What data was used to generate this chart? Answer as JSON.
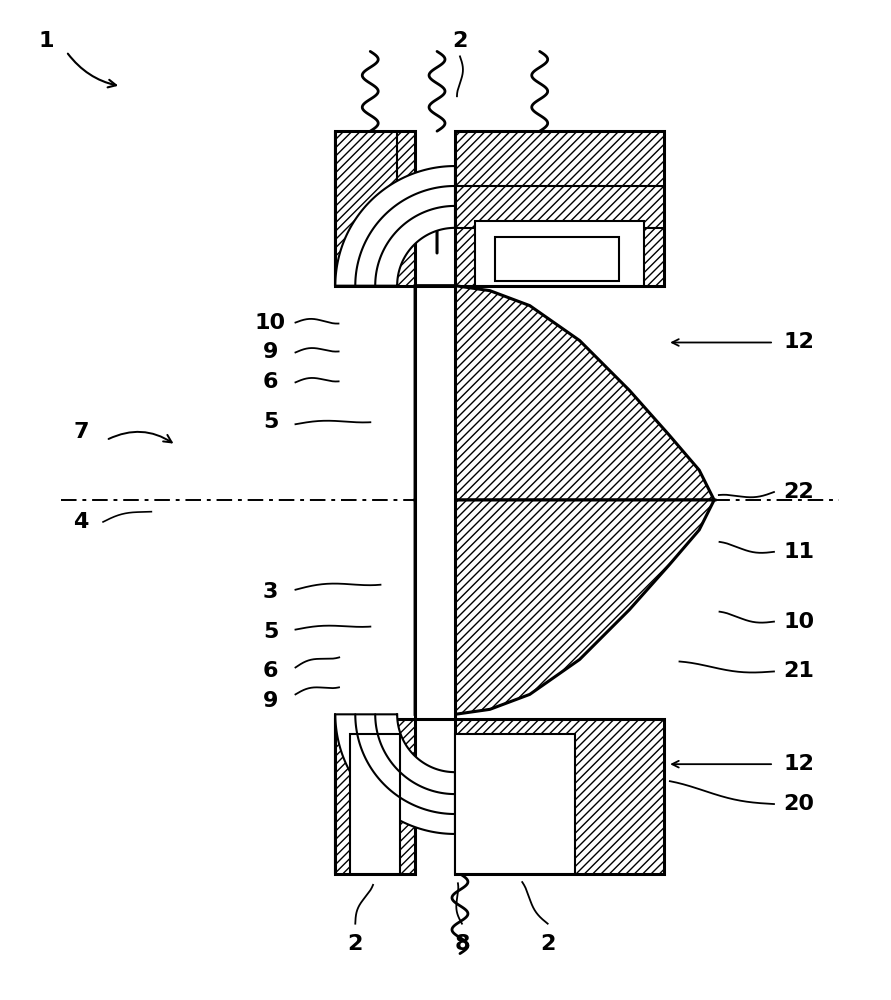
{
  "bg": "#ffffff",
  "lc": "#000000",
  "fig_w": 8.91,
  "fig_h": 10.0,
  "dpi": 100,
  "hatch": "////",
  "labels": [
    [
      "1",
      45,
      960
    ],
    [
      "2",
      355,
      55
    ],
    [
      "8",
      462,
      55
    ],
    [
      "2",
      548,
      55
    ],
    [
      "20",
      800,
      195
    ],
    [
      "12",
      800,
      235
    ],
    [
      "9",
      270,
      298
    ],
    [
      "6",
      270,
      328
    ],
    [
      "21",
      800,
      328
    ],
    [
      "5",
      270,
      368
    ],
    [
      "10",
      800,
      378
    ],
    [
      "3",
      270,
      408
    ],
    [
      "11",
      800,
      448
    ],
    [
      "4",
      80,
      478
    ],
    [
      "22",
      800,
      508
    ],
    [
      "7",
      80,
      568
    ],
    [
      "5",
      270,
      578
    ],
    [
      "6",
      270,
      618
    ],
    [
      "9",
      270,
      648
    ],
    [
      "12",
      800,
      658
    ],
    [
      "10",
      270,
      678
    ],
    [
      "2",
      460,
      960
    ]
  ]
}
